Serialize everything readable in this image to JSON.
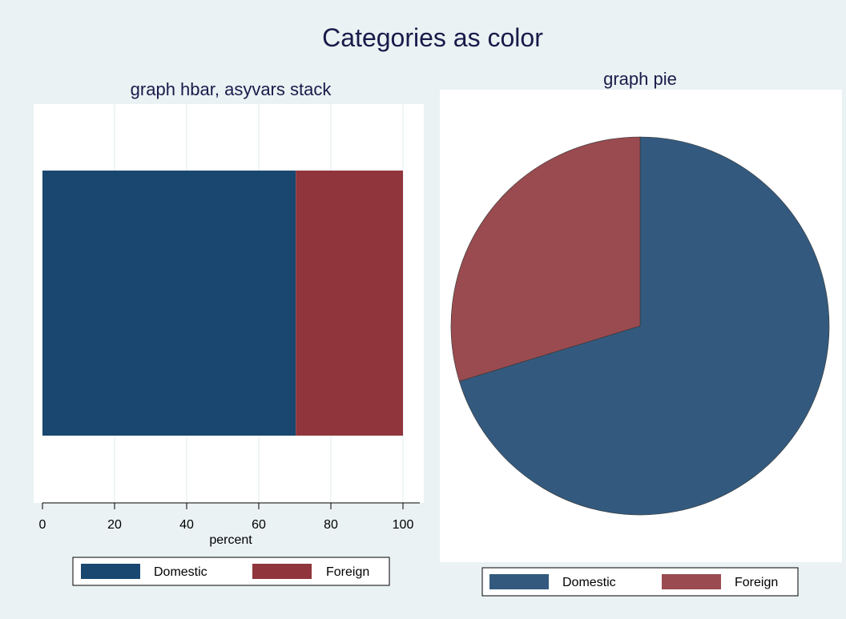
{
  "title": "Categories as color",
  "colors": {
    "figure_background": "#eaf2f3",
    "plot_background": "#ffffff",
    "grid": "#eaf2f3",
    "text": "#1a1a4a"
  },
  "chart_data": [
    {
      "type": "bar",
      "orientation": "horizontal",
      "stacked": true,
      "title": "graph hbar, asyvars stack",
      "xlabel": "percent",
      "ylabel": "",
      "xlim": [
        0,
        100
      ],
      "xticks": [
        0,
        20,
        40,
        60,
        80,
        100
      ],
      "grid": true,
      "categories": [
        ""
      ],
      "series": [
        {
          "name": "Domestic",
          "values": [
            70.27
          ],
          "color": "#1a476f"
        },
        {
          "name": "Foreign",
          "values": [
            29.73
          ],
          "color": "#90353b"
        }
      ],
      "legend": {
        "position": "bottom",
        "entries": [
          "Domestic",
          "Foreign"
        ]
      }
    },
    {
      "type": "pie",
      "title": "graph pie",
      "slices": [
        {
          "label": "Domestic",
          "value": 70.27,
          "color": "#335a7e"
        },
        {
          "label": "Foreign",
          "value": 29.73,
          "color": "#994b50"
        }
      ],
      "legend": {
        "position": "bottom",
        "entries": [
          "Domestic",
          "Foreign"
        ]
      }
    }
  ]
}
